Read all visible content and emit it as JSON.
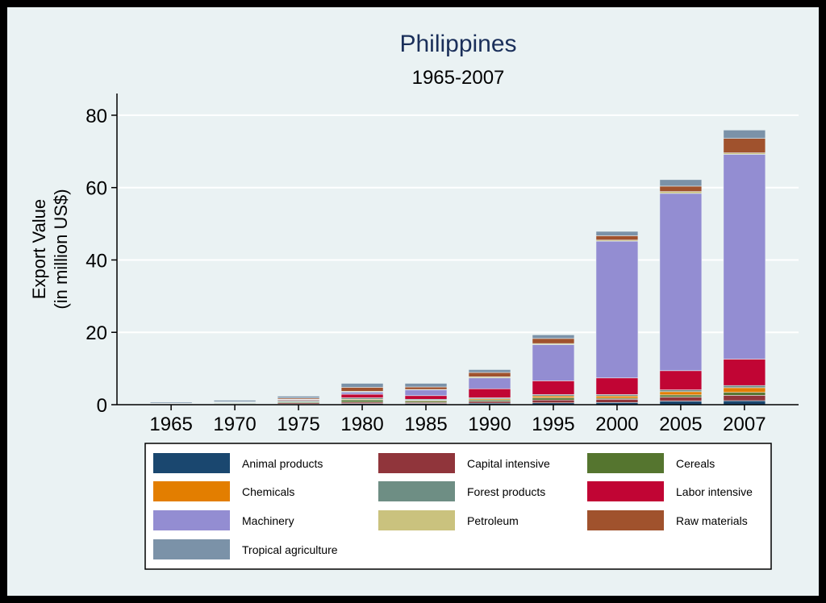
{
  "chart_data": {
    "type": "bar",
    "stacked": true,
    "title": "Philippines",
    "subtitle": "1965-2007",
    "ylabel_line1": "Export Value",
    "ylabel_line2": "(in million US$)",
    "xlabel": "",
    "ylim": [
      0,
      86
    ],
    "yticks": [
      0,
      20,
      40,
      60,
      80
    ],
    "grid": true,
    "legend_position": "bottom",
    "categories": [
      "1965",
      "1970",
      "1975",
      "1980",
      "1985",
      "1990",
      "1995",
      "2000",
      "2005",
      "2007"
    ],
    "series": [
      {
        "name": "Animal products",
        "color": "#1a476f",
        "values": [
          0.05,
          0.1,
          0.2,
          0.3,
          0.3,
          0.4,
          0.5,
          0.6,
          1.0,
          1.1
        ]
      },
      {
        "name": "Capital intensive",
        "color": "#90353b",
        "values": [
          0.05,
          0.1,
          0.3,
          0.4,
          0.3,
          0.5,
          0.8,
          0.9,
          1.1,
          1.5
        ]
      },
      {
        "name": "Cereals",
        "color": "#55752f",
        "values": [
          0.1,
          0.2,
          0.3,
          0.6,
          0.4,
          0.4,
          0.6,
          0.3,
          0.6,
          0.8
        ]
      },
      {
        "name": "Chemicals",
        "color": "#e37e00",
        "values": [
          0.02,
          0.05,
          0.1,
          0.2,
          0.2,
          0.3,
          0.5,
          0.6,
          0.9,
          1.3
        ]
      },
      {
        "name": "Forest products",
        "color": "#6e8e84",
        "values": [
          0.1,
          0.2,
          0.3,
          0.4,
          0.3,
          0.3,
          0.4,
          0.4,
          0.5,
          0.6
        ]
      },
      {
        "name": "Labor intensive",
        "color": "#c10534",
        "values": [
          0.02,
          0.05,
          0.2,
          1.0,
          1.0,
          2.5,
          3.8,
          4.6,
          5.3,
          7.3
        ]
      },
      {
        "name": "Machinery",
        "color": "#938dd2",
        "values": [
          0.0,
          0.0,
          0.1,
          0.6,
          1.6,
          3.0,
          10.0,
          37.8,
          49.0,
          56.6
        ]
      },
      {
        "name": "Petroleum",
        "color": "#cac27e",
        "values": [
          0.0,
          0.02,
          0.05,
          0.2,
          0.1,
          0.3,
          0.3,
          0.3,
          0.5,
          0.4
        ]
      },
      {
        "name": "Raw materials",
        "color": "#a0522d",
        "values": [
          0.1,
          0.1,
          0.3,
          1.1,
          0.7,
          1.2,
          1.4,
          1.2,
          1.5,
          4.0
        ]
      },
      {
        "name": "Tropical agriculture",
        "color": "#7b92a8",
        "values": [
          0.3,
          0.4,
          0.5,
          1.1,
          1.0,
          0.8,
          1.0,
          1.2,
          1.8,
          2.3
        ]
      }
    ]
  }
}
